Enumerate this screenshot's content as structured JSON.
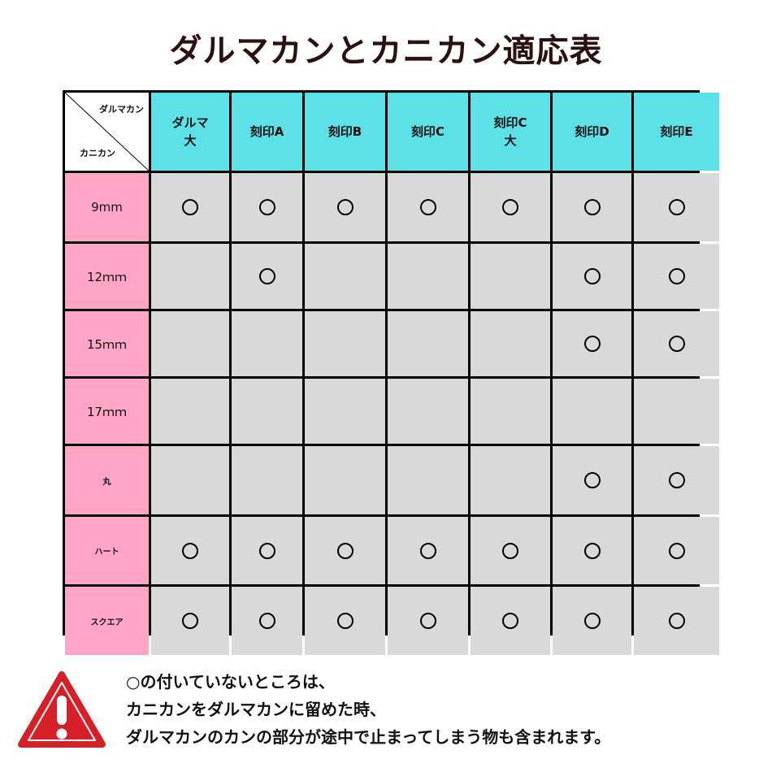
{
  "title": "ダルマカンとカニカン適応表",
  "corner": {
    "top_label": "ダルマカン",
    "bottom_label": "カニカン"
  },
  "columns": [
    "ダルマ\n大",
    "刻印A",
    "刻印B",
    "刻印C",
    "刻印C\n大",
    "刻印D",
    "刻印E"
  ],
  "mark_symbol": "○",
  "rows": [
    {
      "label": "9mm",
      "marks": [
        true,
        true,
        true,
        true,
        true,
        true,
        true
      ]
    },
    {
      "label": "12ｍｍ",
      "marks": [
        false,
        true,
        false,
        false,
        false,
        true,
        true
      ]
    },
    {
      "label": "15ｍｍ",
      "marks": [
        false,
        false,
        false,
        false,
        false,
        true,
        true
      ]
    },
    {
      "label": "17ｍｍ",
      "marks": [
        false,
        false,
        false,
        false,
        false,
        false,
        false
      ]
    },
    {
      "label": "丸",
      "marks": [
        false,
        false,
        false,
        false,
        false,
        true,
        true
      ]
    },
    {
      "label": "ハート",
      "marks": [
        true,
        true,
        true,
        true,
        true,
        true,
        true
      ]
    },
    {
      "label": "スクエア",
      "marks": [
        true,
        true,
        true,
        true,
        true,
        true,
        true
      ]
    }
  ],
  "colors": {
    "header": "#5ce1e6",
    "row_header": "#ffa6c6",
    "body": "#d9d9d9",
    "warning": "#d62027"
  },
  "note": {
    "icon": "warning-icon",
    "lines": [
      "○の付いていないところは、",
      "カニカンをダルマカンに留めた時、",
      "ダルマカンのカンの部分が途中で止まってしまう物も含まれます。"
    ]
  }
}
